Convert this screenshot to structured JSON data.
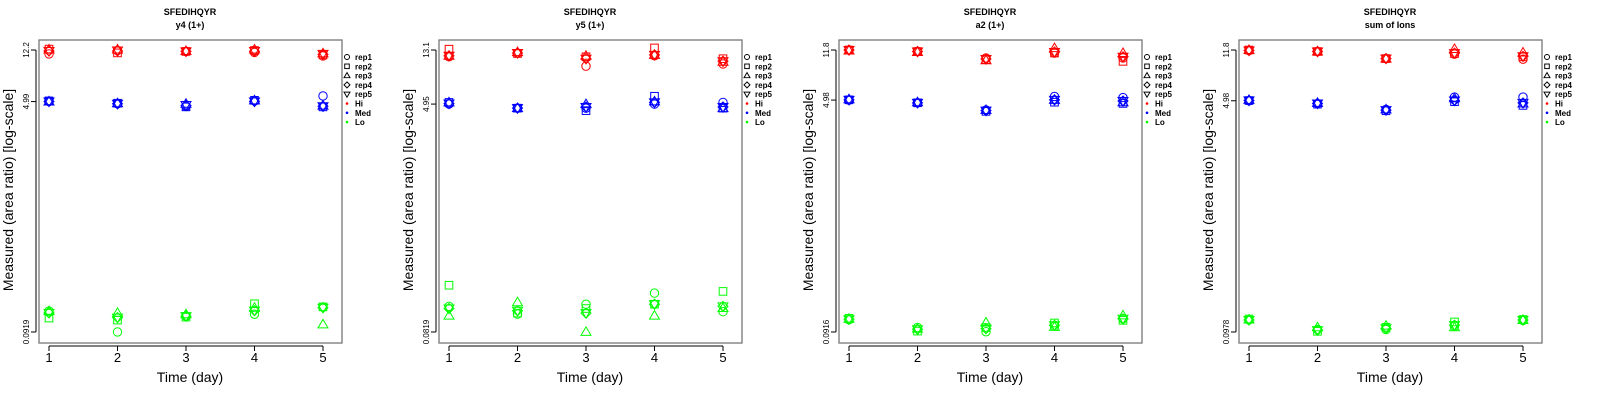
{
  "chart_data": [
    {
      "type": "scatter",
      "title": "SFEDIHQYR",
      "subtitle": "y4 (1+)",
      "xlabel": "Time (day)",
      "ylabel": "Measured (area ratio) [log-scale]",
      "x": [
        1,
        2,
        3,
        4,
        5
      ],
      "yscale": "log",
      "ylim": [
        0.0919,
        12.2
      ],
      "yticks": [
        "0.0919",
        "4.99",
        "12.2"
      ],
      "yticks_values": [
        0.0919,
        4.99,
        12.2
      ],
      "series": [
        {
          "name": "Hi",
          "values": [
            [
              11.4,
              12.4,
              12.3,
              12.0,
              12.0
            ],
            [
              12.1,
              11.6,
              12.3,
              12.0,
              12.1
            ],
            [
              11.9,
              11.9,
              12.0,
              11.9,
              11.9
            ],
            [
              11.7,
              12.1,
              12.3,
              11.9,
              12.0
            ],
            [
              11.0,
              11.2,
              11.5,
              11.3,
              11.4
            ]
          ]
        },
        {
          "name": "Med",
          "values": [
            [
              5.0,
              5.05,
              5.0,
              5.0,
              5.0
            ],
            [
              4.8,
              4.85,
              4.85,
              4.8,
              4.8
            ],
            [
              4.6,
              4.55,
              4.8,
              4.65,
              4.7
            ],
            [
              5.05,
              5.1,
              5.1,
              5.0,
              5.0
            ],
            [
              5.5,
              4.55,
              4.65,
              4.6,
              4.6
            ]
          ]
        },
        {
          "name": "Lo",
          "values": [
            [
              0.132,
              0.117,
              0.132,
              0.128,
              0.128
            ],
            [
              0.092,
              0.113,
              0.128,
              0.118,
              0.118
            ],
            [
              0.121,
              0.119,
              0.125,
              0.121,
              0.121
            ],
            [
              0.125,
              0.15,
              0.14,
              0.133,
              0.133
            ],
            [
              0.142,
              0.142,
              0.105,
              0.14,
              0.14
            ]
          ]
        }
      ]
    },
    {
      "type": "scatter",
      "title": "SFEDIHQYR",
      "subtitle": "y5 (1+)",
      "xlabel": "Time (day)",
      "ylabel": "Measured (area ratio) [log-scale]",
      "x": [
        1,
        2,
        3,
        4,
        5
      ],
      "yscale": "log",
      "ylim": [
        0.0819,
        13.1
      ],
      "yticks": [
        "0.0819",
        "4.95",
        "13.1"
      ],
      "yticks_values": [
        0.0819,
        4.95,
        13.1
      ],
      "series": [
        {
          "name": "Hi",
          "values": [
            [
              11.6,
              13.3,
              11.8,
              11.8,
              11.8
            ],
            [
              12.4,
              12.3,
              12.6,
              12.4,
              12.4
            ],
            [
              9.8,
              11.6,
              11.8,
              11.2,
              11.2
            ],
            [
              11.8,
              13.6,
              12.0,
              12.0,
              12.0
            ],
            [
              10.2,
              11.2,
              10.6,
              10.7,
              10.7
            ]
          ]
        },
        {
          "name": "Med",
          "values": [
            [
              4.95,
              5.1,
              5.1,
              5.0,
              5.0
            ],
            [
              4.6,
              4.6,
              4.6,
              4.6,
              4.6
            ],
            [
              4.6,
              4.4,
              4.95,
              4.7,
              4.7
            ],
            [
              4.95,
              5.7,
              5.2,
              5.1,
              5.1
            ],
            [
              5.1,
              4.6,
              4.6,
              4.7,
              4.7
            ]
          ]
        },
        {
          "name": "Lo",
          "values": [
            [
              0.13,
              0.19,
              0.11,
              0.125,
              0.125
            ],
            [
              0.113,
              0.115,
              0.14,
              0.12,
              0.12
            ],
            [
              0.135,
              0.125,
              0.082,
              0.115,
              0.115
            ],
            [
              0.165,
              0.135,
              0.11,
              0.135,
              0.135
            ],
            [
              0.118,
              0.17,
              0.126,
              0.13,
              0.13
            ]
          ]
        }
      ]
    },
    {
      "type": "scatter",
      "title": "SFEDIHQYR",
      "subtitle": "a2 (1+)",
      "xlabel": "Time (day)",
      "ylabel": "Measured (area ratio) [log-scale]",
      "x": [
        1,
        2,
        3,
        4,
        5
      ],
      "yscale": "log",
      "ylim": [
        0.0916,
        11.8
      ],
      "yticks": [
        "0.0916",
        "4.98",
        "11.8"
      ],
      "yticks_values": [
        0.0916,
        4.98,
        11.8
      ],
      "series": [
        {
          "name": "Hi",
          "values": [
            [
              11.8,
              11.8,
              11.7,
              11.8,
              11.8
            ],
            [
              11.5,
              11.5,
              11.4,
              11.5,
              11.5
            ],
            [
              10.3,
              10.0,
              9.9,
              10.1,
              10.1
            ],
            [
              11.2,
              11.2,
              12.2,
              11.4,
              11.4
            ],
            [
              10.3,
              9.7,
              11.2,
              10.5,
              10.5
            ]
          ]
        },
        {
          "name": "Med",
          "values": [
            [
              4.98,
              5.0,
              5.05,
              5.0,
              5.0
            ],
            [
              4.75,
              4.75,
              4.8,
              4.75,
              4.75
            ],
            [
              4.2,
              4.1,
              4.2,
              4.15,
              4.15
            ],
            [
              5.3,
              4.8,
              5.0,
              5.0,
              5.0
            ],
            [
              5.2,
              4.7,
              4.8,
              4.9,
              4.9
            ]
          ]
        },
        {
          "name": "Lo",
          "values": [
            [
              0.113,
              0.116,
              0.115,
              0.114,
              0.114
            ],
            [
              0.099,
              0.093,
              0.097,
              0.096,
              0.096
            ],
            [
              0.092,
              0.099,
              0.108,
              0.097,
              0.097
            ],
            [
              0.101,
              0.107,
              0.1,
              0.103,
              0.103
            ],
            [
              0.115,
              0.112,
              0.122,
              0.115,
              0.115
            ]
          ]
        }
      ]
    },
    {
      "type": "scatter",
      "title": "SFEDIHQYR",
      "subtitle": "sum of Ions",
      "xlabel": "Time (day)",
      "ylabel": "Measured (area ratio) [log-scale]",
      "x": [
        1,
        2,
        3,
        4,
        5
      ],
      "yscale": "log",
      "ylim": [
        0.0978,
        11.8
      ],
      "yticks": [
        "0.0978",
        "4.98",
        "11.8"
      ],
      "yticks_values": [
        0.0978,
        4.98,
        11.8
      ],
      "series": [
        {
          "name": "Hi",
          "values": [
            [
              11.7,
              11.8,
              11.8,
              11.7,
              11.7
            ],
            [
              11.5,
              11.5,
              11.5,
              11.5,
              11.5
            ],
            [
              10.2,
              10.2,
              10.2,
              10.2,
              10.2
            ],
            [
              11.0,
              11.1,
              12.0,
              11.2,
              11.2
            ],
            [
              10.1,
              10.5,
              11.3,
              10.6,
              10.6
            ]
          ]
        },
        {
          "name": "Med",
          "values": [
            [
              4.98,
              5.0,
              5.05,
              5.0,
              5.0
            ],
            [
              4.75,
              4.7,
              4.8,
              4.75,
              4.75
            ],
            [
              4.3,
              4.2,
              4.3,
              4.25,
              4.25
            ],
            [
              5.3,
              4.9,
              5.2,
              5.0,
              5.0
            ],
            [
              5.3,
              4.6,
              4.75,
              4.8,
              4.8
            ]
          ]
        },
        {
          "name": "Lo",
          "values": [
            [
              0.12,
              0.122,
              0.121,
              0.12,
              0.12
            ],
            [
              0.102,
              0.099,
              0.106,
              0.101,
              0.101
            ],
            [
              0.102,
              0.106,
              0.109,
              0.104,
              0.104
            ],
            [
              0.108,
              0.116,
              0.106,
              0.11,
              0.11
            ],
            [
              0.119,
              0.121,
              0.12,
              0.12,
              0.12
            ]
          ]
        }
      ]
    }
  ],
  "legend": {
    "placement": "right",
    "reps": [
      {
        "label": "rep1",
        "shape": "circle"
      },
      {
        "label": "rep2",
        "shape": "square"
      },
      {
        "label": "rep3",
        "shape": "triangle-up"
      },
      {
        "label": "rep4",
        "shape": "diamond"
      },
      {
        "label": "rep5",
        "shape": "triangle-down"
      }
    ],
    "levels": [
      {
        "label": "Hi",
        "color": "#ff0000"
      },
      {
        "label": "Med",
        "color": "#0000ff"
      },
      {
        "label": "Lo",
        "color": "#00ff00"
      }
    ]
  }
}
